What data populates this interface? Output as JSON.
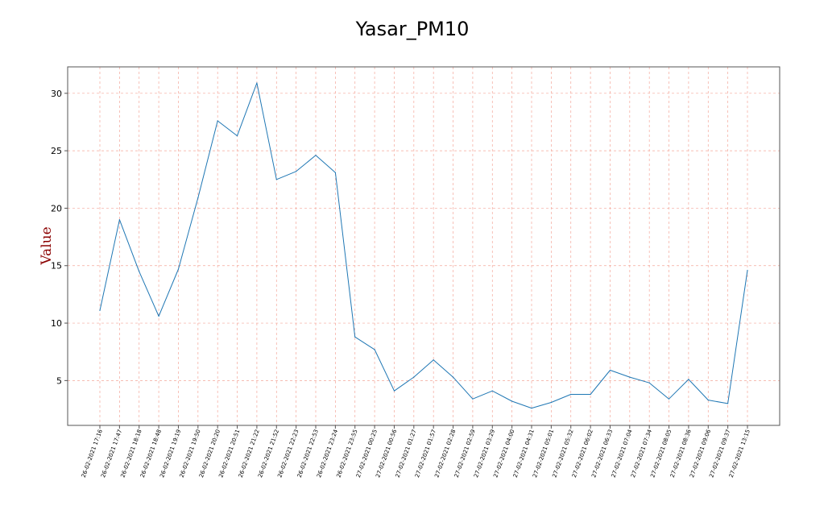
{
  "chart_data": {
    "type": "line",
    "title": "Yasar_PM10",
    "xlabel": "",
    "ylabel": "Value",
    "ylim": [
      1.1,
      32.3
    ],
    "yticks": [
      5,
      10,
      15,
      20,
      25,
      30
    ],
    "grid": true,
    "legend": "none",
    "colors": {
      "line": "#1f77b4",
      "grid": "#f4a79a",
      "ylabel": "#8b0000",
      "axis": "#555555"
    },
    "categories": [
      "26-02-2021 17:16",
      "26-02-2021 17:47",
      "26-02-2021 18:18",
      "26-02-2021 18:48",
      "26-02-2021 19:19",
      "26-02-2021 19:50",
      "26-02-2021 20:20",
      "26-02-2021 20:51",
      "26-02-2021 21:22",
      "26-02-2021 21:52",
      "26-02-2021 22:23",
      "26-02-2021 22:53",
      "26-02-2021 23:24",
      "26-02-2021 23:55",
      "27-02-2021 00:25",
      "27-02-2021 00:56",
      "27-02-2021 01:27",
      "27-02-2021 01:57",
      "27-02-2021 02:28",
      "27-02-2021 02:59",
      "27-02-2021 03:29",
      "27-02-2021 04:00",
      "27-02-2021 04:31",
      "27-02-2021 05:01",
      "27-02-2021 05:32",
      "27-02-2021 06:02",
      "27-02-2021 06:33",
      "27-02-2021 07:04",
      "27-02-2021 07:34",
      "27-02-2021 08:05",
      "27-02-2021 08:36",
      "27-02-2021 09:06",
      "27-02-2021 09:37",
      "27-02-2021 13:15"
    ],
    "series": [
      {
        "values": [
          11.1,
          19.0,
          14.5,
          10.6,
          14.7,
          20.9,
          27.6,
          26.3,
          30.9,
          22.5,
          23.2,
          24.6,
          23.1,
          8.8,
          7.7,
          4.1,
          5.3,
          6.8,
          5.3,
          3.4,
          4.1,
          3.2,
          2.6,
          3.1,
          3.8,
          3.8,
          5.9,
          5.3,
          4.8,
          3.4,
          5.1,
          3.3,
          3.0,
          14.6
        ]
      }
    ]
  }
}
